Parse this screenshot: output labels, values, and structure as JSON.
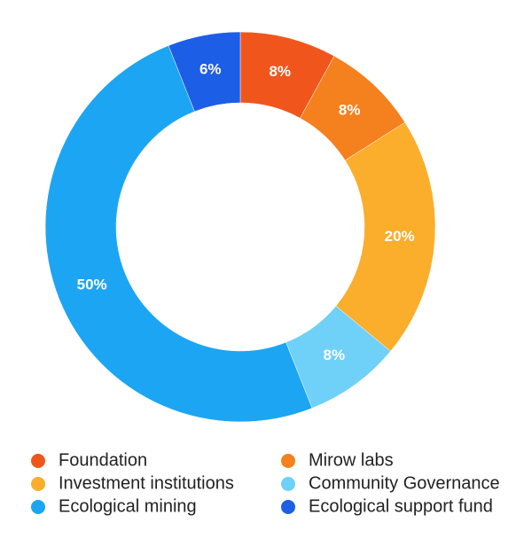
{
  "chart_data": {
    "type": "donut",
    "categories": [
      "Foundation",
      "Mirow labs",
      "Investment institutions",
      "Community Governance",
      "Ecological mining",
      "Ecological support fund"
    ],
    "values": [
      8,
      8,
      20,
      8,
      50,
      6
    ],
    "value_labels": [
      "8%",
      "8%",
      "20%",
      "8%",
      "50%",
      "6%"
    ],
    "colors": [
      "#f0561c",
      "#f5801e",
      "#fbad2c",
      "#6fd0f8",
      "#1ca5f2",
      "#1d5ee6"
    ],
    "legend": "bottom"
  }
}
